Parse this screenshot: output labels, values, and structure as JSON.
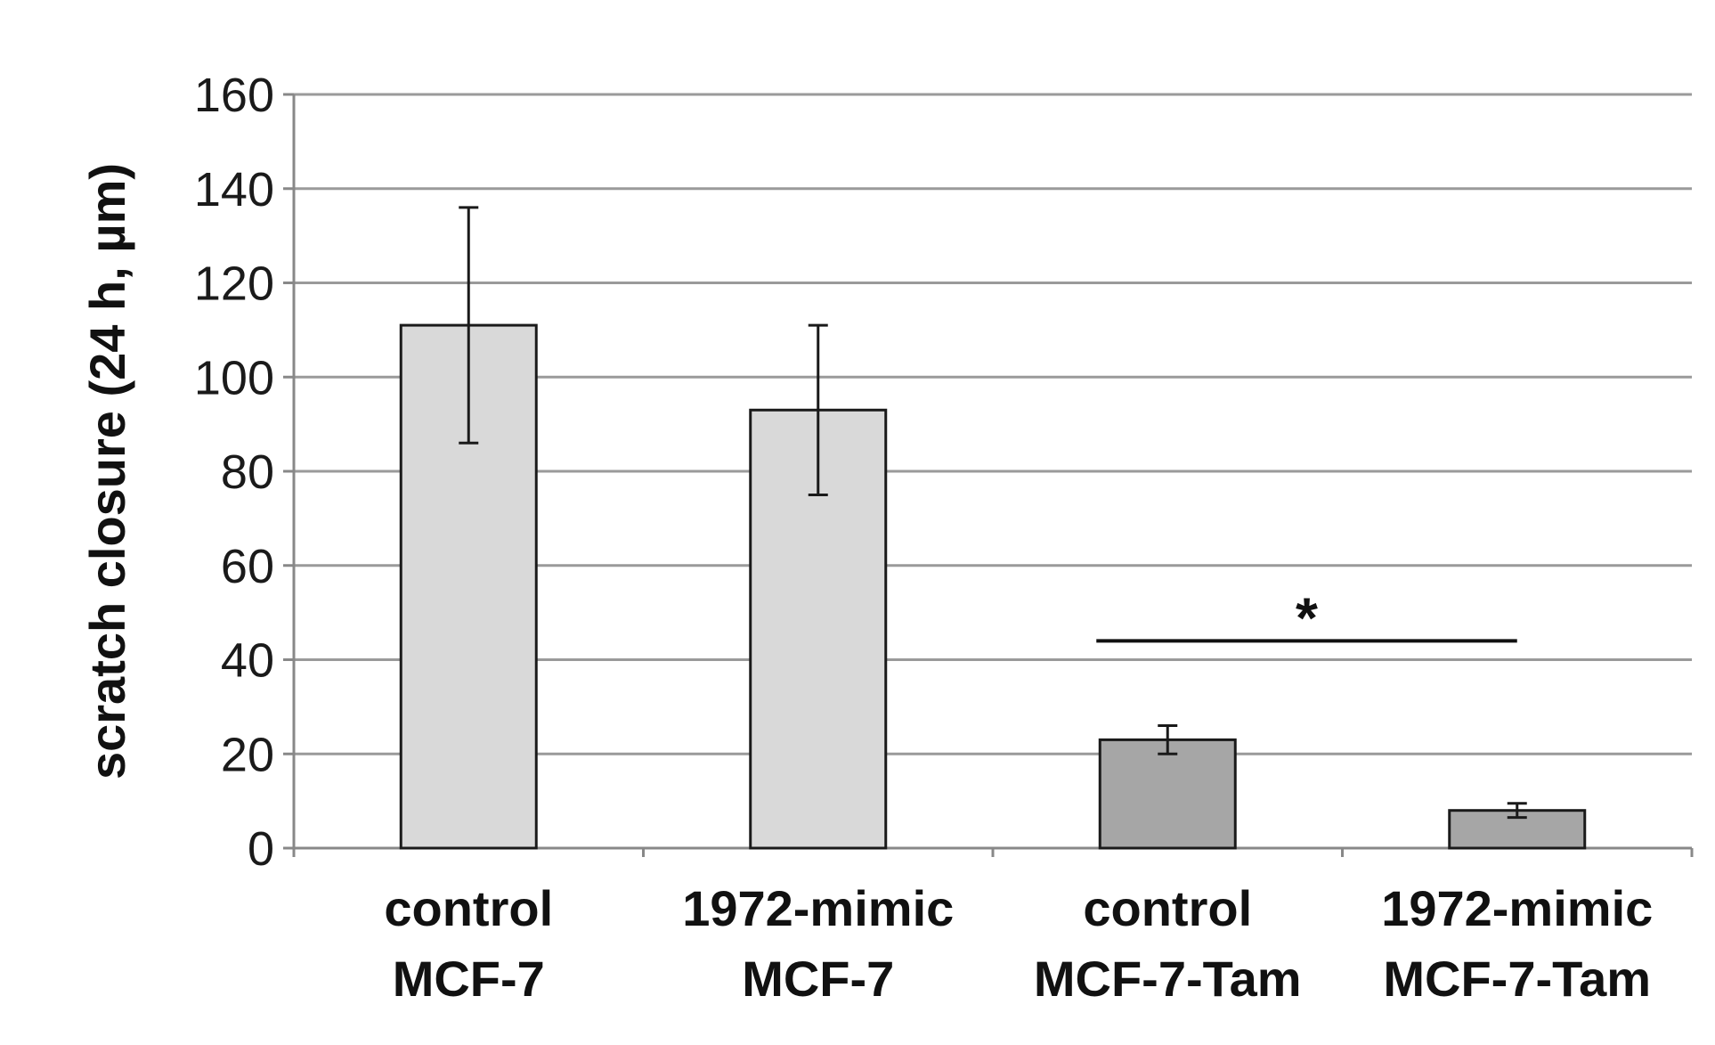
{
  "chart_data": {
    "type": "bar",
    "title": "",
    "xlabel": "",
    "ylabel": "scratch closure (24 h, µm)",
    "ylim": [
      0,
      160
    ],
    "yticks": [
      0,
      20,
      40,
      60,
      80,
      100,
      120,
      140,
      160
    ],
    "grid": true,
    "categories": [
      {
        "line1": "control",
        "line2": "MCF-7"
      },
      {
        "line1": "1972-mimic",
        "line2": "MCF-7"
      },
      {
        "line1": "control",
        "line2": "MCF-7-Tam"
      },
      {
        "line1": "1972-mimic",
        "line2": "MCF-7-Tam"
      }
    ],
    "values": [
      111,
      93,
      23,
      8
    ],
    "error": [
      25,
      18,
      3,
      1.5
    ],
    "bar_colors": [
      "#d9d9d9",
      "#d9d9d9",
      "#a6a6a6",
      "#a6a6a6"
    ],
    "significance": {
      "from": 2,
      "to": 3,
      "label": "*"
    }
  }
}
